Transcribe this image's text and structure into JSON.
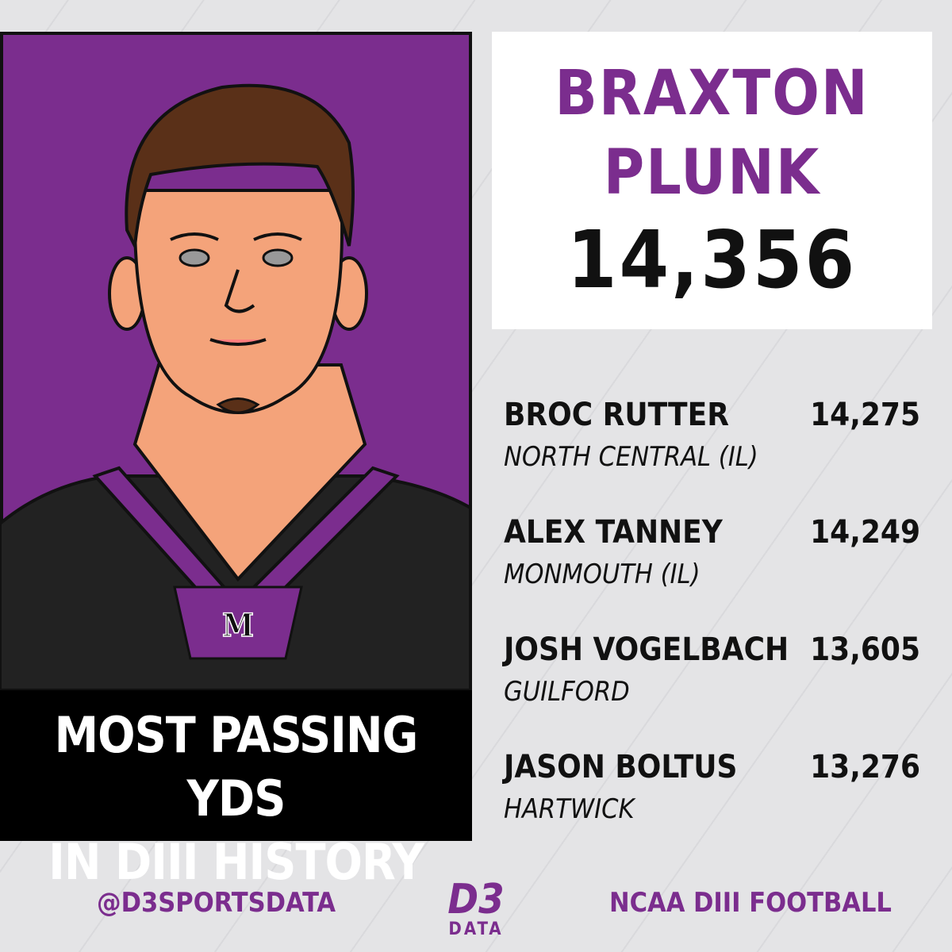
{
  "featured": {
    "name_line1": "BRAXTON",
    "name_line2": "PLUNK",
    "yards": "14,356"
  },
  "headline": {
    "line1": "MOST PASSING YDS",
    "line2": "IN DIII HISTORY"
  },
  "leaders": [
    {
      "name": "BROC RUTTER",
      "school": "NORTH CENTRAL (IL)",
      "yards": "14,275"
    },
    {
      "name": "ALEX TANNEY",
      "school": "MONMOUTH (IL)",
      "yards": "14,249"
    },
    {
      "name": "JOSH VOGELBACH",
      "school": "GUILFORD",
      "yards": "13,605"
    },
    {
      "name": "JASON BOLTUS",
      "school": "HARTWICK",
      "yards": "13,276"
    }
  ],
  "jersey_logo": "M",
  "footer": {
    "handle": "@D3SPORTSDATA",
    "logo_top": "D3",
    "logo_bottom": "DATA",
    "league": "NCAA DIII FOOTBALL"
  }
}
